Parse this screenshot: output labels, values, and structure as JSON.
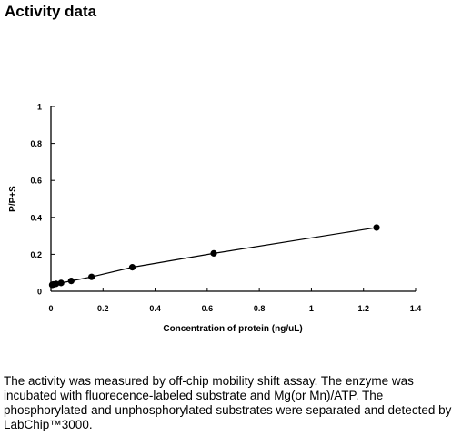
{
  "heading": "Activity data",
  "description": "The activity was measured by off-chip mobility shift assay. The enzyme was incubated with fluorecence-labeled  substrate and Mg(or Mn)/ATP. The phosphorylated and unphosphorylated substrates were separated and detected by LabChip™3000.",
  "chart_data": {
    "type": "line",
    "title": "",
    "xlabel": "Concentration of protein (ng/uL)",
    "ylabel": "P/P+S",
    "xlim": [
      0,
      1.4
    ],
    "ylim": [
      0,
      1
    ],
    "xticks": [
      "0",
      "0.2",
      "0.4",
      "0.6",
      "0.8",
      "1",
      "1.2",
      "1.4"
    ],
    "yticks": [
      "0",
      "0.2",
      "0.4",
      "0.6",
      "0.8",
      "1"
    ],
    "grid": false,
    "legend": "none",
    "series": [
      {
        "x": [
          0.0049,
          0.0098,
          0.0195,
          0.039,
          0.078,
          0.156,
          0.3125,
          0.625,
          1.25
        ],
        "y": [
          0.035,
          0.037,
          0.04,
          0.045,
          0.056,
          0.078,
          0.13,
          0.205,
          0.345
        ]
      }
    ]
  }
}
